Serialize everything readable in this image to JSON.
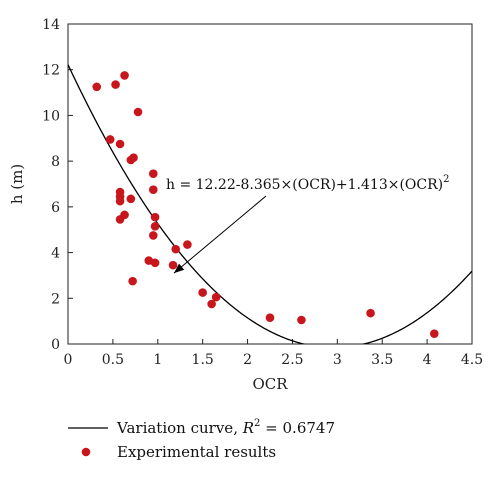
{
  "chart_data": {
    "type": "scatter",
    "xlabel": "OCR",
    "ylabel": "h (m)",
    "xlim": [
      0,
      4.5
    ],
    "ylim": [
      0,
      14
    ],
    "xticks": [
      0,
      0.5,
      1,
      1.5,
      2,
      2.5,
      3,
      3.5,
      4,
      4.5
    ],
    "yticks": [
      0,
      2,
      4,
      6,
      8,
      10,
      12,
      14
    ],
    "xtick_labels": [
      "0",
      "0.5",
      "1",
      "1.5",
      "2",
      "2.5",
      "3",
      "3.5",
      "4",
      "4.5"
    ],
    "ytick_labels": [
      "0",
      "2",
      "4",
      "6",
      "8",
      "10",
      "12",
      "14"
    ],
    "grid": false,
    "legend_position": "bottom",
    "curve": {
      "name": "Variation curve",
      "coefficients": [
        12.22,
        -8.365,
        1.413
      ],
      "r2_label": "R",
      "r2_sup": "2",
      "r2_value": " = 0.6747",
      "color": "#000000"
    },
    "equation_annotation": {
      "text": "h = 12.22-8.365×(OCR)+1.413×(OCR)",
      "sup": "2",
      "arrow_to": [
        1.18,
        3.1
      ]
    },
    "series": [
      {
        "name": "Experimental results",
        "color": "#c8161d",
        "points": [
          [
            0.32,
            11.25
          ],
          [
            0.53,
            11.35
          ],
          [
            0.63,
            11.75
          ],
          [
            0.78,
            10.15
          ],
          [
            0.47,
            8.95
          ],
          [
            0.58,
            8.75
          ],
          [
            0.7,
            8.05
          ],
          [
            0.73,
            8.15
          ],
          [
            0.95,
            7.45
          ],
          [
            0.95,
            6.75
          ],
          [
            0.58,
            6.65
          ],
          [
            0.58,
            6.45
          ],
          [
            0.58,
            6.25
          ],
          [
            0.7,
            6.35
          ],
          [
            0.97,
            5.55
          ],
          [
            0.63,
            5.65
          ],
          [
            0.58,
            5.45
          ],
          [
            0.97,
            5.15
          ],
          [
            0.95,
            4.75
          ],
          [
            1.33,
            4.35
          ],
          [
            1.2,
            4.15
          ],
          [
            0.9,
            3.65
          ],
          [
            0.97,
            3.55
          ],
          [
            1.17,
            3.45
          ],
          [
            0.72,
            2.75
          ],
          [
            1.5,
            2.25
          ],
          [
            1.65,
            2.05
          ],
          [
            1.6,
            1.75
          ],
          [
            2.25,
            1.15
          ],
          [
            2.6,
            1.05
          ],
          [
            3.37,
            1.35
          ],
          [
            4.08,
            0.45
          ]
        ]
      }
    ]
  }
}
